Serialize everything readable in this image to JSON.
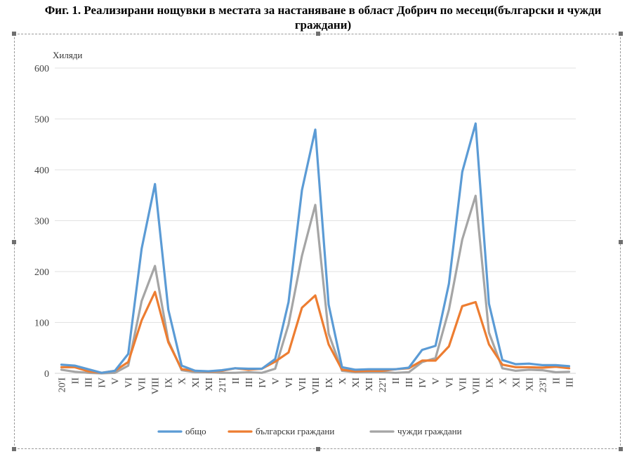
{
  "chart_data": {
    "type": "line",
    "title": "Фиг. 1. Реализирани нощувки в местата за настаняване в област Добрич по месеци(български и чужди граждани)",
    "ylabel": "Хиляди",
    "ylim": [
      0,
      600
    ],
    "yticks": [
      "0",
      "100",
      "200",
      "300",
      "400",
      "500",
      "600"
    ],
    "grid": true,
    "legend_position": "bottom",
    "categories": [
      "20'I",
      "II",
      "III",
      "IV",
      "V",
      "VI",
      "VII",
      "VIII",
      "IX",
      "X",
      "XI",
      "XII",
      "21'I",
      "II",
      "III",
      "IV",
      "V",
      "VI",
      "VII",
      "VIII",
      "IX",
      "X",
      "XI",
      "XII",
      "22'I",
      "II",
      "III",
      "IV",
      "V",
      "VI",
      "VII",
      "VIII",
      "IX",
      "X",
      "XI",
      "XII",
      "23'I",
      "II",
      "III"
    ],
    "series": [
      {
        "name": "общо",
        "color": "#5b9bd5",
        "values": [
          17,
          15,
          8,
          1,
          5,
          38,
          245,
          372,
          125,
          15,
          5,
          4,
          6,
          10,
          9,
          9,
          28,
          140,
          360,
          479,
          135,
          12,
          7,
          8,
          8,
          8,
          11,
          46,
          54,
          176,
          396,
          491,
          137,
          26,
          18,
          19,
          16,
          16,
          14
        ]
      },
      {
        "name": "български граждани",
        "color": "#ed7d31",
        "values": [
          12,
          12,
          4,
          1,
          5,
          22,
          104,
          160,
          61,
          8,
          5,
          3,
          5,
          10,
          7,
          9,
          23,
          41,
          129,
          153,
          57,
          7,
          4,
          5,
          5,
          8,
          10,
          25,
          25,
          53,
          132,
          140,
          57,
          17,
          12,
          12,
          11,
          13,
          10
        ]
      },
      {
        "name": "чужди граждани",
        "color": "#a5a5a5",
        "values": [
          7,
          3,
          1,
          0,
          1,
          15,
          142,
          211,
          64,
          6,
          2,
          2,
          1,
          1,
          2,
          1,
          9,
          96,
          231,
          331,
          78,
          5,
          2,
          2,
          2,
          1,
          2,
          22,
          30,
          125,
          263,
          349,
          80,
          10,
          5,
          7,
          6,
          2,
          3
        ]
      }
    ]
  }
}
